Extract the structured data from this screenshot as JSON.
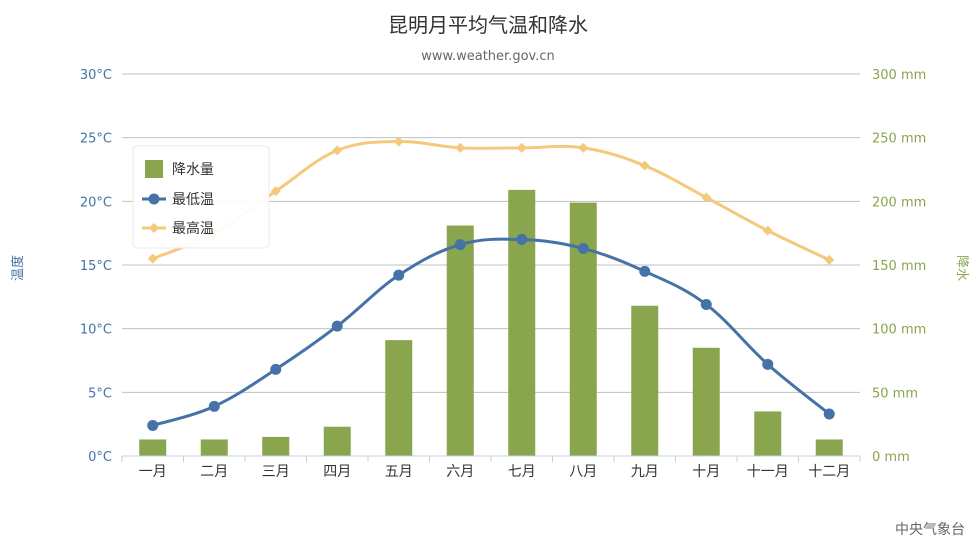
{
  "chart_data": {
    "type": "bar",
    "title": "昆明月平均气温和降水",
    "subtitle": "www.weather.gov.cn",
    "categories": [
      "一月",
      "二月",
      "三月",
      "四月",
      "五月",
      "六月",
      "七月",
      "八月",
      "九月",
      "十月",
      "十一月",
      "十二月"
    ],
    "y_left": {
      "label": "温度",
      "ticks": [
        "0°C",
        "5°C",
        "10°C",
        "15°C",
        "20°C",
        "25°C",
        "30°C"
      ],
      "ylim": [
        0,
        30
      ]
    },
    "y_right": {
      "label": "降水",
      "ticks": [
        "0 mm",
        "50 mm",
        "100 mm",
        "150 mm",
        "200 mm",
        "250 mm",
        "300 mm"
      ],
      "ylim": [
        0,
        300
      ]
    },
    "grid": true,
    "legend_position": "top-left",
    "series": [
      {
        "name": "降水量",
        "type": "bar",
        "axis": "right",
        "color": "#89a54e",
        "values": [
          13,
          13,
          15,
          23,
          91,
          181,
          209,
          199,
          118,
          85,
          35,
          13
        ]
      },
      {
        "name": "最低温",
        "type": "line",
        "axis": "left",
        "color": "#4572a7",
        "values": [
          2.4,
          3.9,
          6.8,
          10.2,
          14.2,
          16.6,
          17.0,
          16.3,
          14.5,
          11.9,
          7.2,
          3.3
        ]
      },
      {
        "name": "最高温",
        "type": "line",
        "axis": "left",
        "color": "#f5c97b",
        "values": [
          15.5,
          17.5,
          20.8,
          24.0,
          24.7,
          24.2,
          24.2,
          24.2,
          22.8,
          20.3,
          17.7,
          15.4
        ]
      }
    ],
    "credit": "中央气象台"
  }
}
